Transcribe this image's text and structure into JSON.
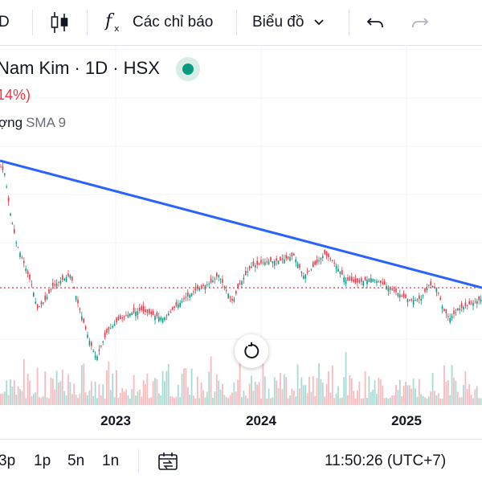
{
  "toolbar": {
    "interval_label": "D",
    "indicators_label": "Các chỉ báo",
    "chart_type_label": "Biểu đồ",
    "icons": [
      "candles-icon",
      "function-icon",
      "chevron-down-icon",
      "undo-icon",
      "redo-icon"
    ]
  },
  "legend": {
    "title": "Nam Kim · 1D · HSX",
    "change": "14%)",
    "volume_label": "ợng",
    "sma_label": "SMA 9",
    "status_color": "#089981"
  },
  "colors": {
    "trendline": "#2962ff",
    "price_line": "#f23645",
    "up": "#089981",
    "down": "#f23645"
  },
  "chart_data": {
    "type": "candlestick",
    "x_ticks": [
      "2023",
      "2024",
      "2025"
    ],
    "grid": true,
    "annotations": [
      "descending trendline",
      "dotted horizontal price line"
    ]
  },
  "bottombar": {
    "ranges": [
      "3p",
      "1p",
      "5n",
      "1n"
    ],
    "time": "11:50:26 (UTC+7)"
  }
}
